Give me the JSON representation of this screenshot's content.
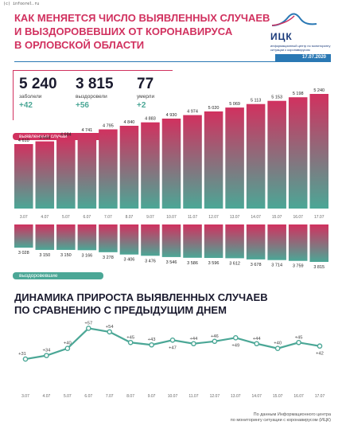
{
  "copyright": "(с) infoorel.ru",
  "title": [
    "КАК МЕНЯЕТСЯ ЧИСЛО ВЫЯВЛЕННЫХ СЛУЧАЕВ",
    "И ВЫЗДОРОВЕВШИХ ОТ КОРОНАВИРУСА",
    "В ОРЛОВСКОЙ ОБЛАСТИ"
  ],
  "logo": {
    "name": "ИЦК",
    "text": "информационный центр по мониторингу ситуации с коронавирусом"
  },
  "date": "17.07.2020",
  "stats": [
    {
      "value": "5 240",
      "label": "заболели",
      "delta": "+42"
    },
    {
      "value": "3 815",
      "label": "выздоровели",
      "delta": "+56"
    },
    {
      "value": "77",
      "label": "умерли",
      "delta": "+2"
    }
  ],
  "labels": {
    "cases": "выявленные случаи",
    "recovered": "выздоровевшие"
  },
  "section2_title": [
    "ДИНАМИКА ПРИРОСТА ВЫЯВЛЕННЫХ СЛУЧАЕВ",
    "ПО СРАВНЕНИЮ С ПРЕДЫДУЩИМ ДНЕМ"
  ],
  "footer": [
    "По данным Информационного центра",
    "по мониторингу ситуации с коронавирусом (ИЦК)"
  ],
  "colors": {
    "accent": "#d1315f",
    "teal": "#4ba796",
    "blue": "#2a78b4"
  },
  "chart_data": [
    {
      "type": "bar",
      "categories": [
        "3.07",
        "4.07",
        "5.07",
        "6.07",
        "7.07",
        "8.07",
        "9.07",
        "10.07",
        "11.07",
        "12.07",
        "13.07",
        "14.07",
        "15.07",
        "16.07",
        "17.07"
      ],
      "series": [
        {
          "name": "выявленные случаи",
          "values": [
            4610,
            4644,
            4684,
            4741,
            4795,
            4840,
            4883,
            4930,
            4974,
            5020,
            5069,
            5113,
            5153,
            5198,
            5240
          ]
        }
      ],
      "value_labels": [
        "4 610",
        "4 644",
        "4 684",
        "4 741",
        "4 795",
        "4 840",
        "4 883",
        "4 930",
        "4 974",
        "5 020",
        "5 069",
        "5 113",
        "5 153",
        "5 198",
        "5 240"
      ]
    },
    {
      "type": "bar",
      "categories": [
        "3.07",
        "4.07",
        "5.07",
        "6.07",
        "7.07",
        "8.07",
        "9.07",
        "10.07",
        "11.07",
        "12.07",
        "13.07",
        "14.07",
        "15.07",
        "16.07",
        "17.07"
      ],
      "series": [
        {
          "name": "выздоровевшие",
          "values": [
            3028,
            3150,
            3150,
            3166,
            3278,
            3406,
            3476,
            3546,
            3586,
            3596,
            3612,
            3678,
            3714,
            3759,
            3815
          ]
        }
      ],
      "value_labels": [
        "3 028",
        "3 150",
        "3 150",
        "3 166",
        "3 278",
        "3 406",
        "3 476",
        "3 546",
        "3 586",
        "3 596",
        "3 612",
        "3 678",
        "3 714",
        "3 759",
        "3 815"
      ]
    },
    {
      "type": "line",
      "categories": [
        "3.07",
        "4.07",
        "5.07",
        "6.07",
        "7.07",
        "8.07",
        "9.07",
        "10.07",
        "11.07",
        "12.07",
        "13.07",
        "14.07",
        "15.07",
        "16.07",
        "17.07"
      ],
      "series": [
        {
          "values": [
            31,
            34,
            40,
            57,
            54,
            45,
            43,
            47,
            44,
            46,
            49,
            44,
            40,
            45,
            42
          ]
        }
      ],
      "value_labels": [
        "+31",
        "+34",
        "+40",
        "+57",
        "+54",
        "+45",
        "+43",
        "+47",
        "+44",
        "+46",
        "+49",
        "+44",
        "+40",
        "+45",
        "+42"
      ]
    }
  ]
}
